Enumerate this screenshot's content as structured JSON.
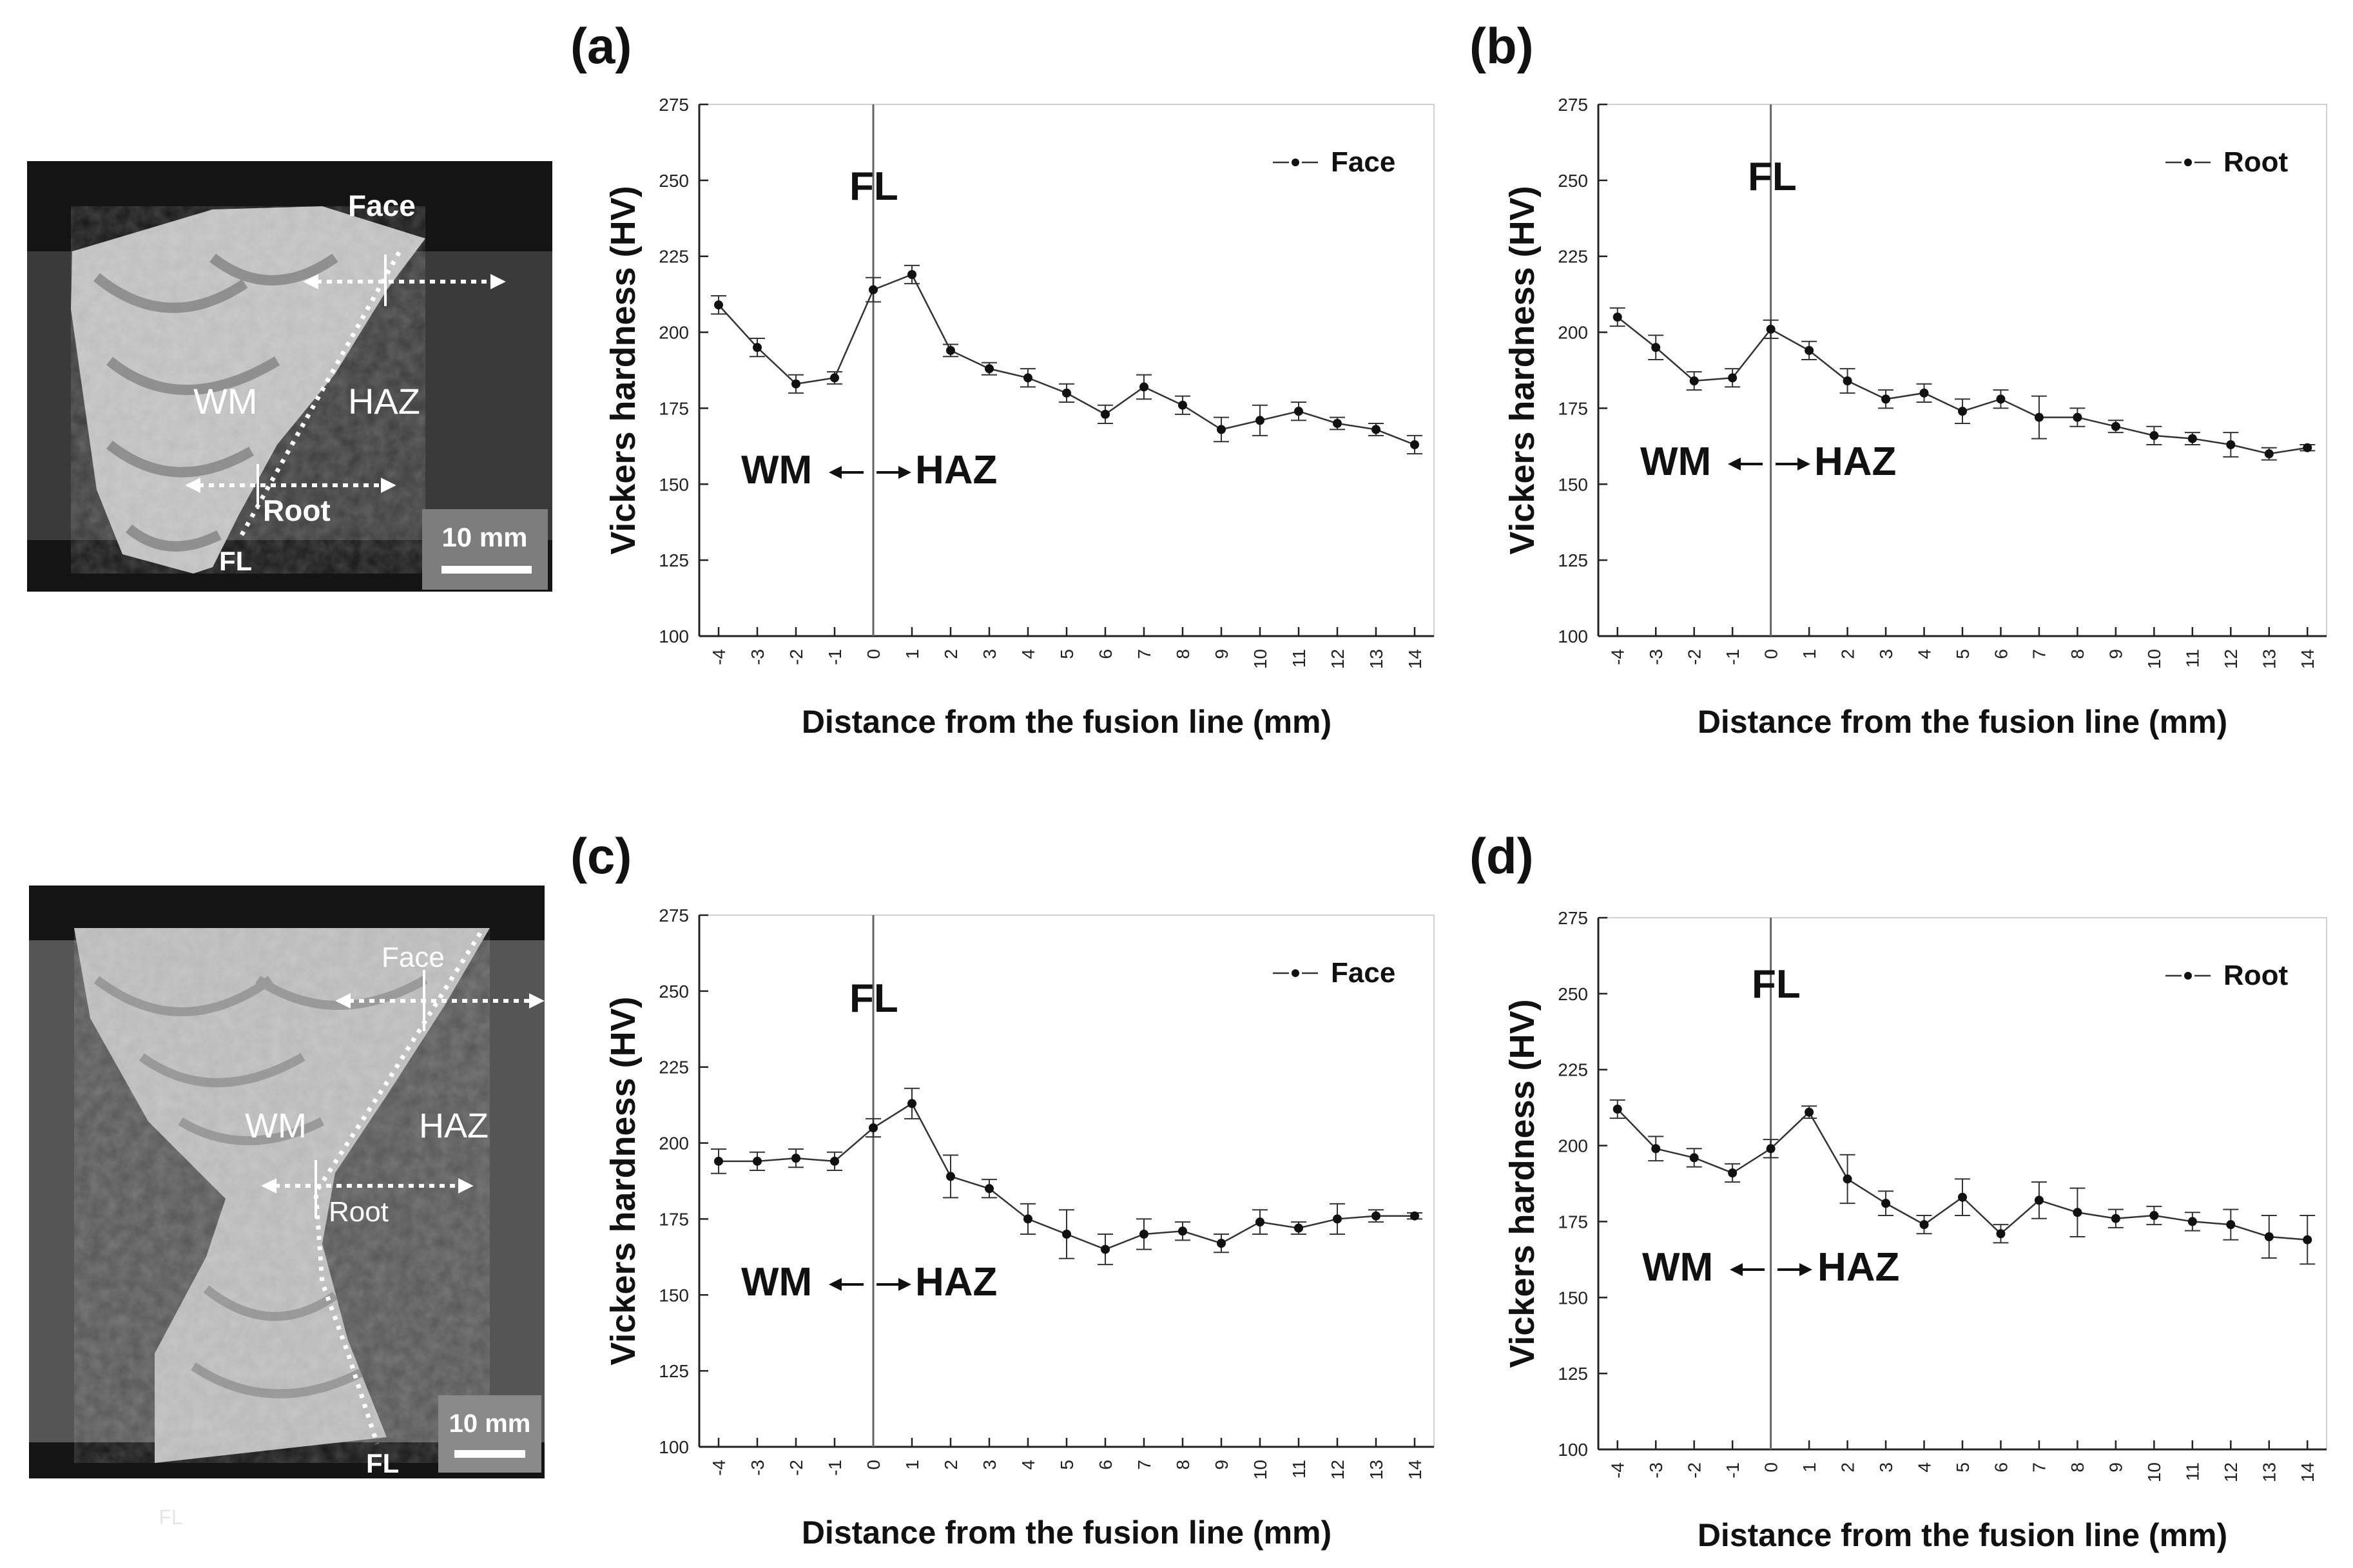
{
  "panels": [
    {
      "id": "a",
      "label": "(a)",
      "micrograph": {
        "labels": {
          "face": "Face",
          "root": "Root",
          "wm": "WM",
          "haz": "HAZ",
          "fl": "FL",
          "scale": "10 mm"
        }
      },
      "annotations": {
        "fl": "FL",
        "wm": "WM",
        "haz": "HAZ"
      }
    },
    {
      "id": "b",
      "label": "(b)",
      "annotations": {
        "fl": "FL",
        "wm": "WM",
        "haz": "HAZ"
      }
    },
    {
      "id": "c",
      "label": "(c)",
      "micrograph": {
        "labels": {
          "face": "Face",
          "root": "Root",
          "wm": "WM",
          "haz": "HAZ",
          "fl": "FL",
          "scale": "10 mm",
          "faint": "FL"
        }
      },
      "annotations": {
        "fl": "FL",
        "wm": "WM",
        "haz": "HAZ"
      }
    },
    {
      "id": "d",
      "label": "(d)",
      "annotations": {
        "fl": "FL",
        "wm": "WM",
        "haz": "HAZ"
      }
    }
  ],
  "chart_data": [
    {
      "panel": "a",
      "type": "line",
      "xlabel": "Distance from the fusion line (mm)",
      "ylabel": "Vickers hardness (HV)",
      "xlim": [
        -4.5,
        14.5
      ],
      "ylim": [
        100,
        275
      ],
      "xticks": [
        -4,
        -3,
        -2,
        -1,
        0,
        1,
        2,
        3,
        4,
        5,
        6,
        7,
        8,
        9,
        10,
        11,
        12,
        13,
        14
      ],
      "yticks": [
        100,
        125,
        150,
        175,
        200,
        225,
        250,
        275
      ],
      "legend": "top-right",
      "fusion_line_x": 0,
      "series": [
        {
          "name": "Face",
          "x": [
            -4,
            -3,
            -2,
            -1,
            0,
            1,
            2,
            3,
            4,
            5,
            6,
            7,
            8,
            9,
            10,
            11,
            12,
            13,
            14
          ],
          "y": [
            209,
            195,
            183,
            185,
            214,
            219,
            194,
            188,
            185,
            180,
            173,
            182,
            176,
            168,
            171,
            174,
            170,
            168,
            163
          ],
          "err": [
            3,
            3,
            3,
            2,
            4,
            3,
            2,
            2,
            3,
            3,
            3,
            4,
            3,
            4,
            5,
            3,
            2,
            2,
            3
          ]
        }
      ]
    },
    {
      "panel": "b",
      "type": "line",
      "xlabel": "Distance from the fusion line (mm)",
      "ylabel": "Vickers hardness (HV)",
      "xlim": [
        -4.5,
        14.5
      ],
      "ylim": [
        100,
        275
      ],
      "xticks": [
        -4,
        -3,
        -2,
        -1,
        0,
        1,
        2,
        3,
        4,
        5,
        6,
        7,
        8,
        9,
        10,
        11,
        12,
        13,
        14
      ],
      "yticks": [
        100,
        125,
        150,
        175,
        200,
        225,
        250,
        275
      ],
      "legend": "top-right",
      "fusion_line_x": 0,
      "series": [
        {
          "name": "Root",
          "x": [
            -4,
            -3,
            -2,
            -1,
            0,
            1,
            2,
            3,
            4,
            5,
            6,
            7,
            8,
            9,
            10,
            11,
            12,
            13,
            14
          ],
          "y": [
            205,
            195,
            184,
            185,
            201,
            194,
            184,
            178,
            180,
            174,
            178,
            172,
            172,
            169,
            166,
            165,
            163,
            160,
            162
          ],
          "err": [
            3,
            4,
            3,
            3,
            3,
            3,
            4,
            3,
            3,
            4,
            3,
            7,
            3,
            2,
            3,
            2,
            4,
            2,
            1
          ]
        }
      ]
    },
    {
      "panel": "c",
      "type": "line",
      "xlabel": "Distance from the fusion line (mm)",
      "ylabel": "Vickers hardness (HV)",
      "xlim": [
        -4.5,
        14.5
      ],
      "ylim": [
        100,
        275
      ],
      "xticks": [
        -4,
        -3,
        -2,
        -1,
        0,
        1,
        2,
        3,
        4,
        5,
        6,
        7,
        8,
        9,
        10,
        11,
        12,
        13,
        14
      ],
      "yticks": [
        100,
        125,
        150,
        175,
        200,
        225,
        250,
        275
      ],
      "legend": "top-right",
      "fusion_line_x": 0,
      "series": [
        {
          "name": "Face",
          "x": [
            -4,
            -3,
            -2,
            -1,
            0,
            1,
            2,
            3,
            4,
            5,
            6,
            7,
            8,
            9,
            10,
            11,
            12,
            13,
            14
          ],
          "y": [
            194,
            194,
            195,
            194,
            205,
            213,
            189,
            185,
            175,
            170,
            165,
            170,
            171,
            167,
            174,
            172,
            175,
            176,
            176
          ],
          "err": [
            4,
            3,
            3,
            3,
            3,
            5,
            7,
            3,
            5,
            8,
            5,
            5,
            3,
            3,
            4,
            2,
            5,
            2,
            1
          ]
        }
      ]
    },
    {
      "panel": "d",
      "type": "line",
      "xlabel": "Distance from the fusion line (mm)",
      "ylabel": "Vickers hardness (HV)",
      "xlim": [
        -4.5,
        14.5
      ],
      "ylim": [
        100,
        275
      ],
      "xticks": [
        -4,
        -3,
        -2,
        -1,
        0,
        1,
        2,
        3,
        4,
        5,
        6,
        7,
        8,
        9,
        10,
        11,
        12,
        13,
        14
      ],
      "yticks": [
        100,
        125,
        150,
        175,
        200,
        225,
        250,
        275
      ],
      "legend": "top-right",
      "fusion_line_x": 0,
      "series": [
        {
          "name": "Root",
          "x": [
            -4,
            -3,
            -2,
            -1,
            0,
            1,
            2,
            3,
            4,
            5,
            6,
            7,
            8,
            9,
            10,
            11,
            12,
            13,
            14
          ],
          "y": [
            212,
            199,
            196,
            191,
            199,
            211,
            189,
            181,
            174,
            183,
            171,
            182,
            178,
            176,
            177,
            175,
            174,
            170,
            169
          ],
          "err": [
            3,
            4,
            3,
            3,
            3,
            2,
            8,
            4,
            3,
            6,
            3,
            6,
            8,
            3,
            3,
            3,
            5,
            7,
            8
          ]
        }
      ]
    }
  ]
}
